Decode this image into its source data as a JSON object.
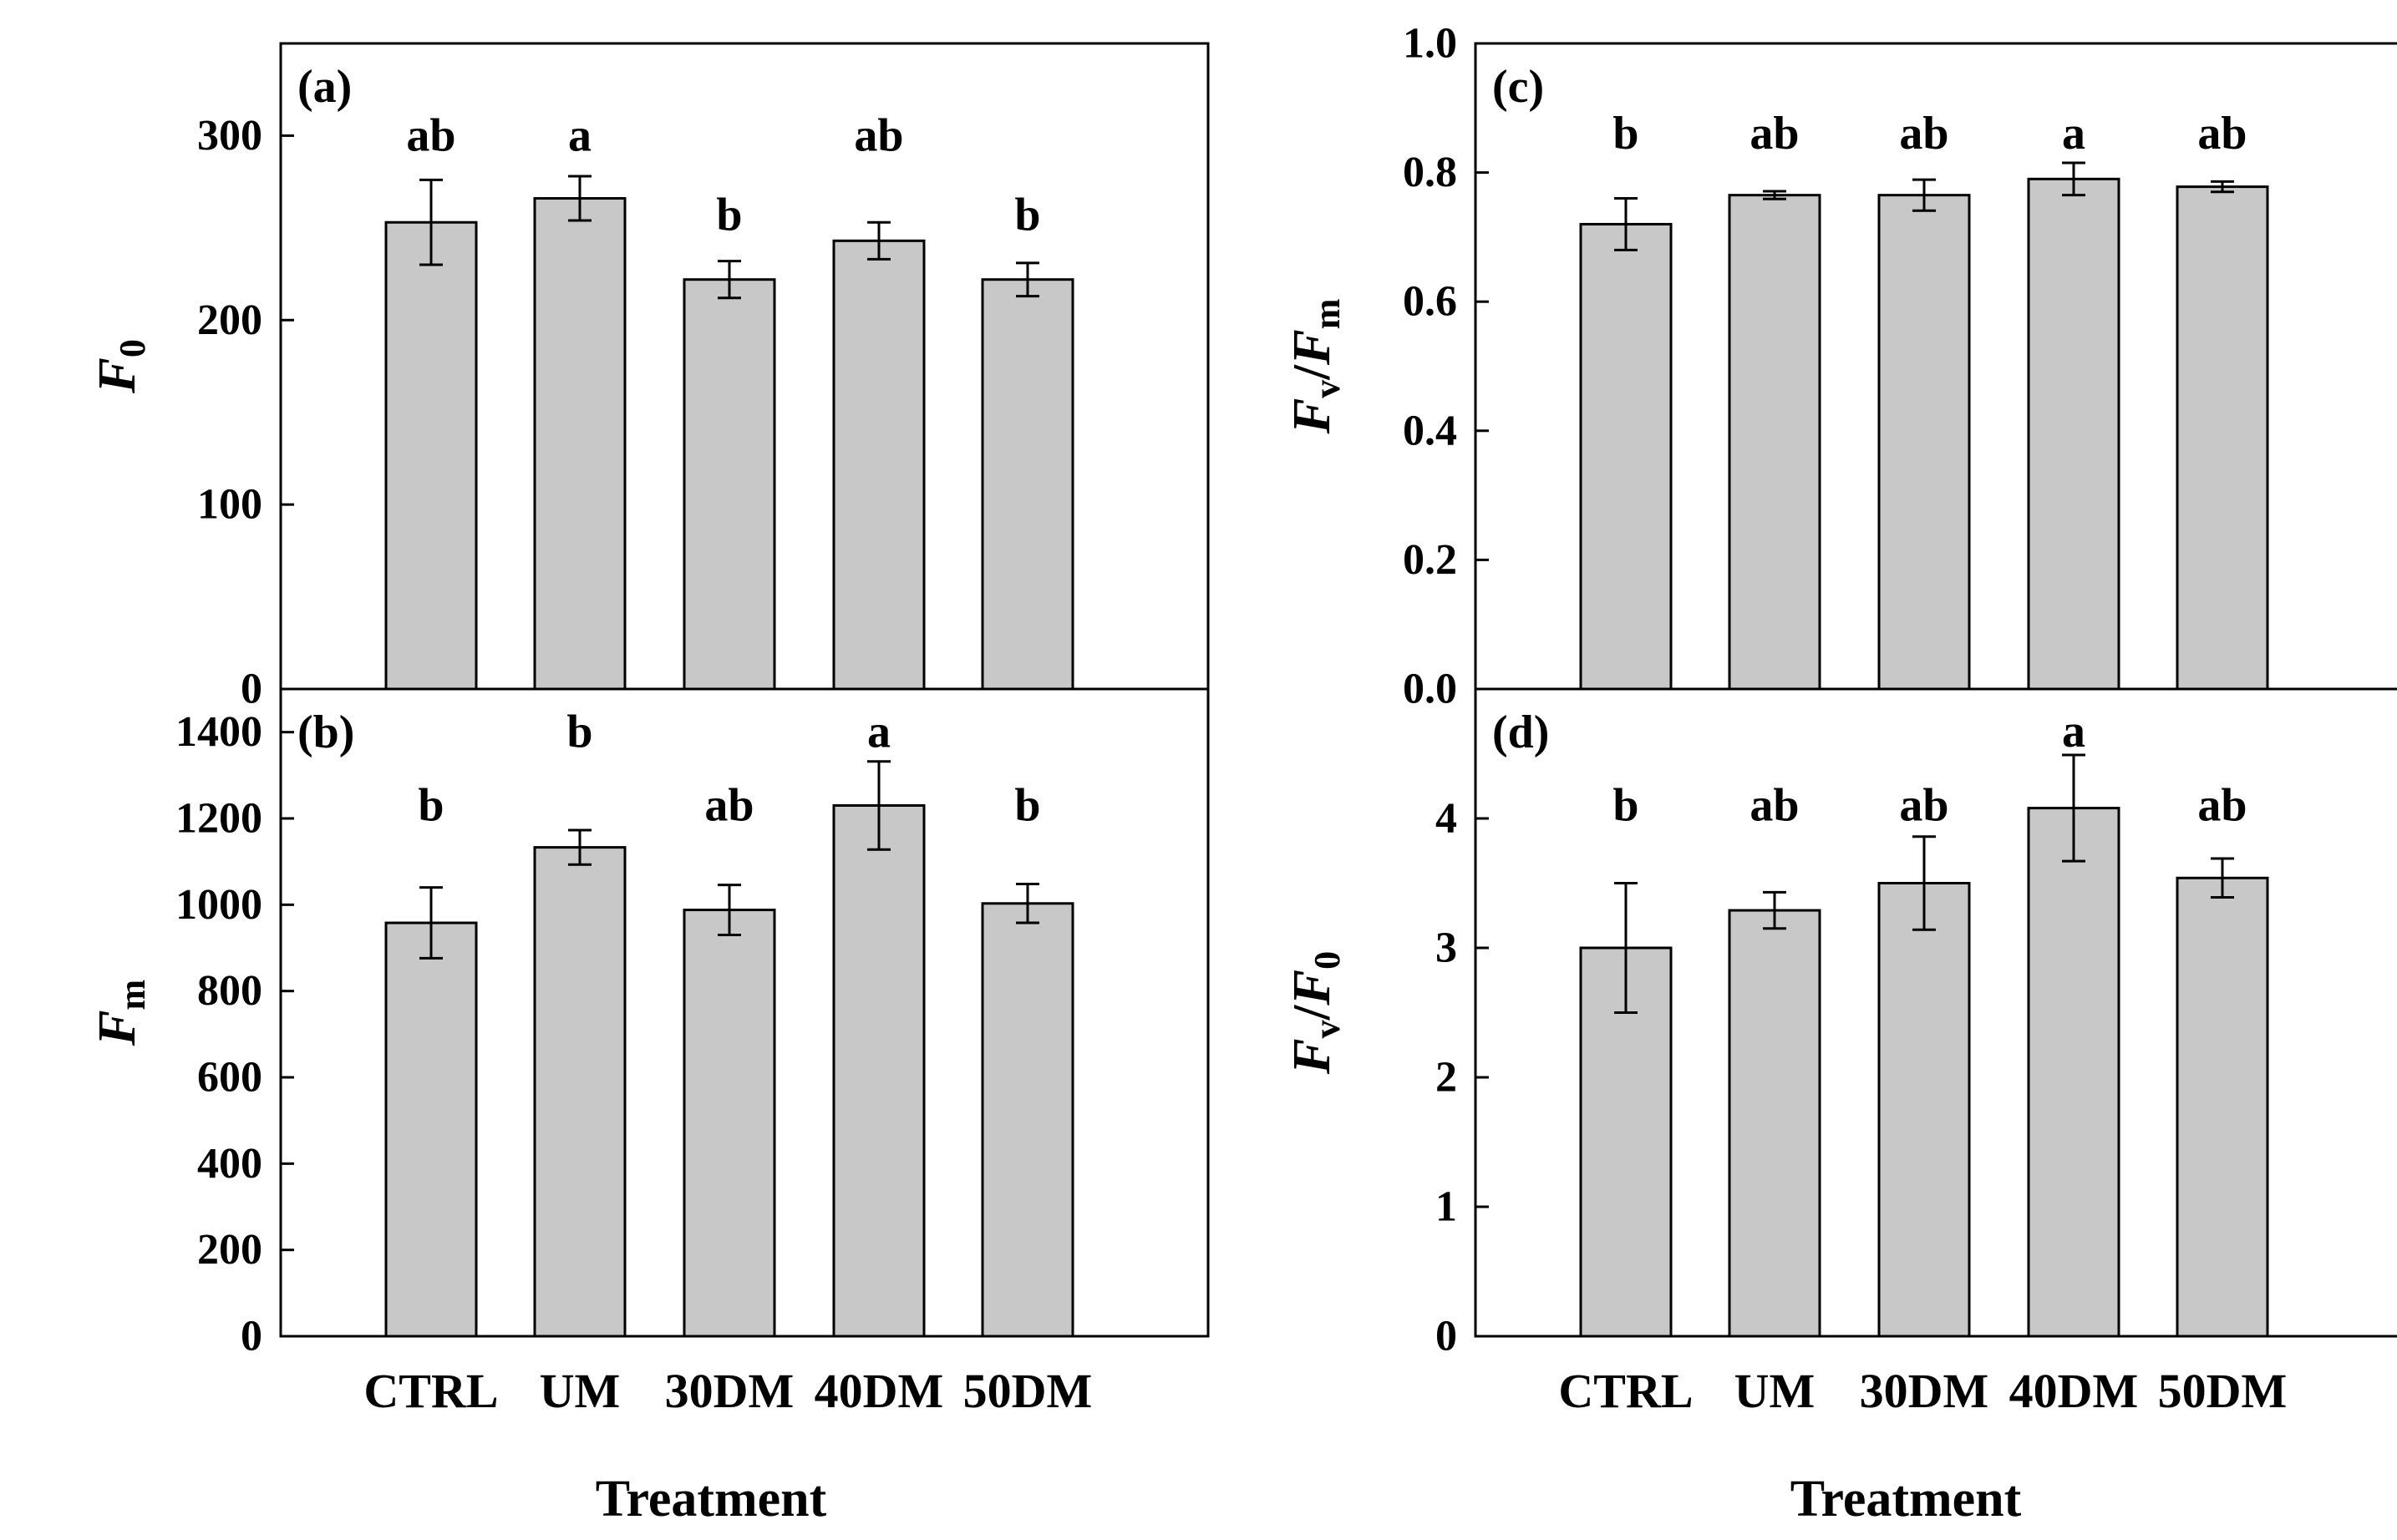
{
  "chart_data": [
    {
      "id": "a",
      "type": "bar",
      "panel_label": "(a)",
      "ylabel_main": "F",
      "ylabel_sub": "0",
      "xlabel": "",
      "ylim": [
        0,
        350
      ],
      "yticks": [
        0,
        100,
        200,
        300
      ],
      "tick_decimals": 0,
      "categories": [
        "CTRL",
        "UM",
        "30DM",
        "40DM",
        "50DM"
      ],
      "values": [
        253,
        266,
        222,
        243,
        222
      ],
      "errors": [
        23,
        12,
        10,
        10,
        9
      ],
      "letters": [
        "ab",
        "a",
        "b",
        "ab",
        "b"
      ],
      "letter_values": [
        300,
        300,
        257,
        300,
        257
      ],
      "show_categories": false
    },
    {
      "id": "b",
      "type": "bar",
      "panel_label": "(b)",
      "ylabel_main": "F",
      "ylabel_sub": "m",
      "xlabel": "Treatment",
      "ylim": [
        0,
        1500
      ],
      "yticks": [
        0,
        200,
        400,
        600,
        800,
        1000,
        1200,
        1400
      ],
      "tick_decimals": 0,
      "categories": [
        "CTRL",
        "UM",
        "30DM",
        "40DM",
        "50DM"
      ],
      "values": [
        958,
        1133,
        988,
        1230,
        1003
      ],
      "errors": [
        82,
        40,
        58,
        102,
        45
      ],
      "letters": [
        "b",
        "b",
        "ab",
        "a",
        "b"
      ],
      "letter_values": [
        1230,
        1400,
        1230,
        1400,
        1230
      ],
      "show_categories": true
    },
    {
      "id": "c",
      "type": "bar",
      "panel_label": "(c)",
      "ylabel_main": "F",
      "ylabel_sub": "v",
      "ylabel_main2": "F",
      "ylabel_sub2": "m",
      "xlabel": "",
      "ylim": [
        0,
        1.0
      ],
      "yticks": [
        0.0,
        0.2,
        0.4,
        0.6,
        0.8,
        1.0
      ],
      "tick_decimals": 1,
      "categories": [
        "CTRL",
        "UM",
        "30DM",
        "40DM",
        "50DM"
      ],
      "values": [
        0.72,
        0.765,
        0.765,
        0.79,
        0.778
      ],
      "errors": [
        0.04,
        0.006,
        0.024,
        0.025,
        0.008
      ],
      "letters": [
        "b",
        "ab",
        "ab",
        "a",
        "ab"
      ],
      "letter_values": [
        0.86,
        0.86,
        0.86,
        0.86,
        0.86
      ],
      "show_categories": false
    },
    {
      "id": "d",
      "type": "bar",
      "panel_label": "(d)",
      "ylabel_main": "F",
      "ylabel_sub": "v",
      "ylabel_main2": "F",
      "ylabel_sub2": "0",
      "xlabel": "Treatment",
      "ylim": [
        0,
        5.0
      ],
      "yticks": [
        0,
        1,
        2,
        3,
        4
      ],
      "tick_decimals": 0,
      "categories": [
        "CTRL",
        "UM",
        "30DM",
        "40DM",
        "50DM"
      ],
      "values": [
        3.0,
        3.29,
        3.5,
        4.08,
        3.54
      ],
      "errors": [
        0.5,
        0.14,
        0.36,
        0.41,
        0.15
      ],
      "letters": [
        "b",
        "ab",
        "ab",
        "a",
        "ab"
      ],
      "letter_values": [
        4.1,
        4.1,
        4.1,
        4.67,
        4.1
      ],
      "show_categories": true
    }
  ]
}
